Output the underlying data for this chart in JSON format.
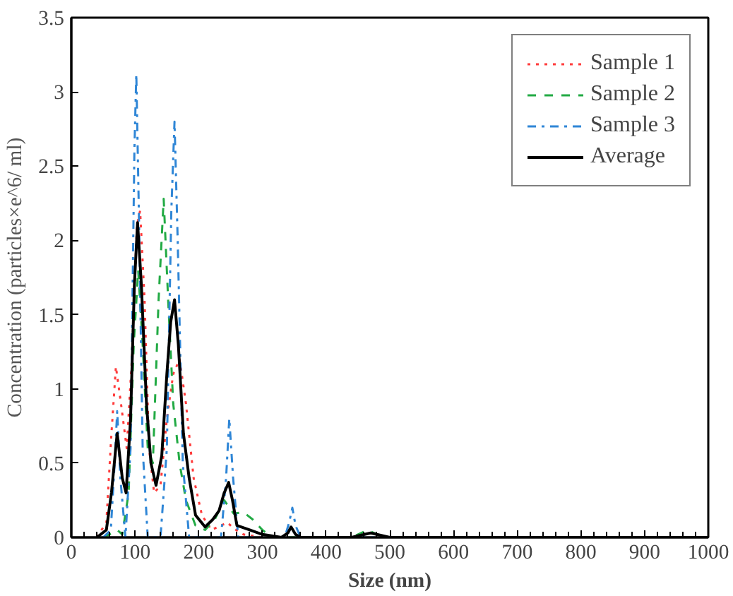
{
  "chart_data": {
    "type": "line",
    "xlabel": "Size (nm)",
    "ylabel": "Concentration (particles×e^6/ ml)",
    "xlim": [
      0,
      1000
    ],
    "ylim": [
      0,
      3.5
    ],
    "xticks": [
      0,
      100,
      200,
      300,
      400,
      500,
      600,
      700,
      800,
      900,
      1000
    ],
    "yticks": [
      0,
      0.5,
      1,
      1.5,
      2,
      2.5,
      3,
      3.5
    ],
    "grid": false,
    "legend": "top right",
    "series": [
      {
        "name": "Sample 1",
        "color": "#ff3b3b",
        "line_style": "dotted",
        "x": [
          40,
          55,
          63,
          70,
          78,
          87,
          95,
          103,
          108,
          115,
          122,
          130,
          140,
          150,
          160,
          170,
          180,
          192,
          205,
          220,
          235,
          245,
          255,
          270,
          300
        ],
        "values": [
          0,
          0.1,
          0.7,
          1.15,
          0.9,
          0.6,
          1.2,
          2.1,
          2.2,
          1.6,
          0.6,
          0.3,
          0.35,
          0.8,
          1.1,
          1.2,
          0.9,
          0.4,
          0.15,
          0.05,
          0.08,
          0.1,
          0.06,
          0.02,
          0
        ]
      },
      {
        "name": "Sample 2",
        "color": "#22aa44",
        "line_style": "dashed",
        "x": [
          50,
          65,
          72,
          80,
          90,
          98,
          105,
          112,
          120,
          128,
          137,
          145,
          152,
          160,
          170,
          180,
          195,
          210,
          225,
          240,
          255,
          270,
          285,
          300,
          315,
          440,
          465,
          490,
          520
        ],
        "values": [
          0,
          0.03,
          0.05,
          0.02,
          0.3,
          1.3,
          1.8,
          1.3,
          0.6,
          0.5,
          1.6,
          2.28,
          1.6,
          0.9,
          0.5,
          0.25,
          0.08,
          0.05,
          0.12,
          0.25,
          0.16,
          0.17,
          0.12,
          0.05,
          0,
          0,
          0.05,
          0,
          0
        ]
      },
      {
        "name": "Sample 3",
        "color": "#2f86d6",
        "line_style": "dashdot",
        "x": [
          50,
          62,
          68,
          72,
          77,
          85,
          93,
          99,
          102,
          106,
          112,
          120,
          140,
          150,
          157,
          162,
          167,
          175,
          185,
          235,
          243,
          248,
          254,
          262,
          335,
          342,
          347,
          352,
          360,
          1000
        ],
        "values": [
          0,
          0.05,
          0.5,
          0.85,
          0.4,
          0,
          0.6,
          2.6,
          3.12,
          2.2,
          0.6,
          0,
          0,
          0.6,
          2.2,
          2.8,
          2.0,
          0.5,
          0,
          0,
          0.4,
          0.8,
          0.4,
          0,
          0,
          0.1,
          0.2,
          0.08,
          0,
          0
        ]
      },
      {
        "name": "Average",
        "color": "#000000",
        "line_style": "solid",
        "x": [
          40,
          55,
          63,
          72,
          80,
          86,
          93,
          99,
          104,
          110,
          118,
          125,
          133,
          142,
          150,
          156,
          162,
          168,
          176,
          185,
          195,
          210,
          222,
          232,
          240,
          247,
          253,
          260,
          280,
          300,
          330,
          340,
          345,
          352,
          360,
          440,
          470,
          500,
          1000
        ],
        "values": [
          0,
          0.05,
          0.3,
          0.7,
          0.4,
          0.3,
          0.8,
          1.7,
          2.12,
          1.7,
          0.9,
          0.5,
          0.35,
          0.55,
          1.1,
          1.45,
          1.6,
          1.3,
          0.7,
          0.4,
          0.15,
          0.07,
          0.12,
          0.18,
          0.3,
          0.37,
          0.25,
          0.08,
          0.05,
          0.02,
          0,
          0.03,
          0.07,
          0.02,
          0,
          0,
          0.03,
          0,
          0
        ]
      }
    ]
  }
}
